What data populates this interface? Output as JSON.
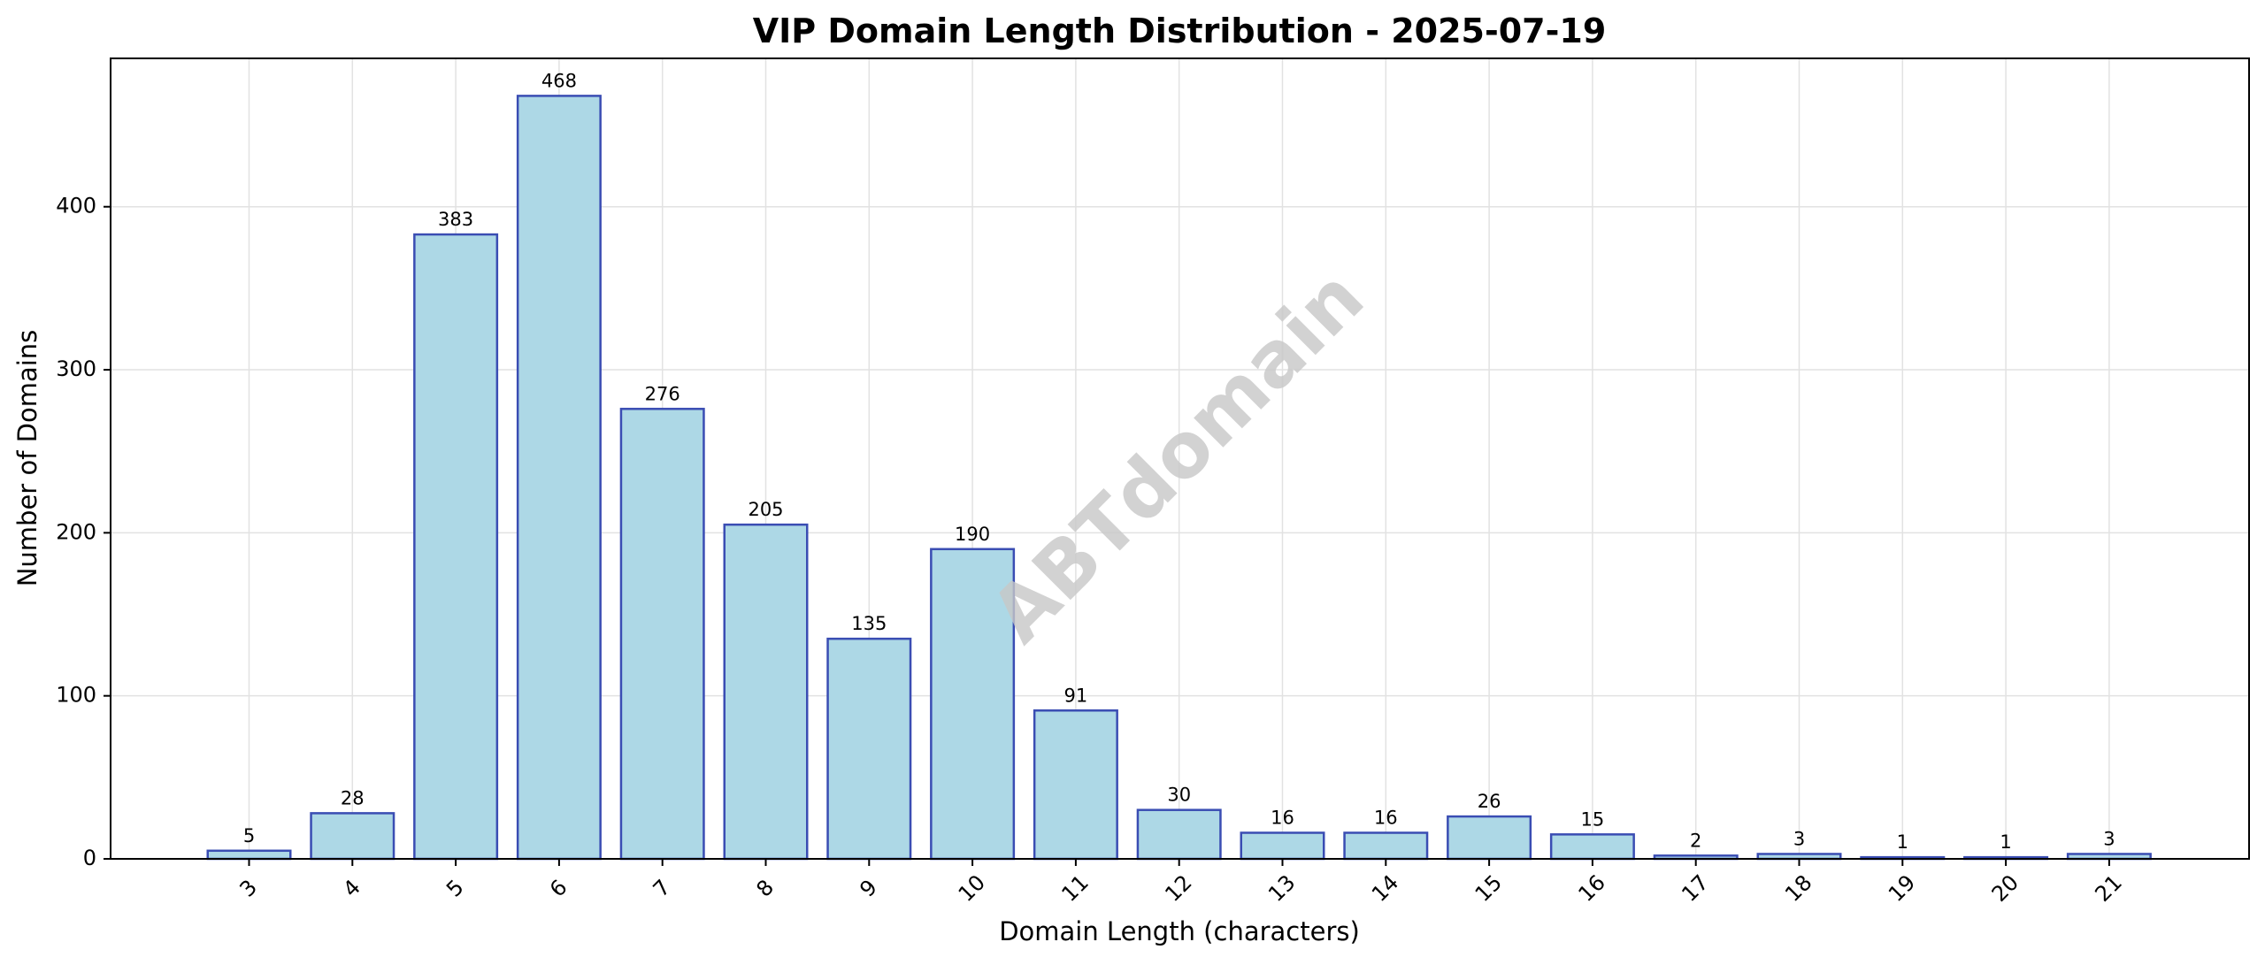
{
  "chart_data": {
    "type": "bar",
    "title": "VIP Domain Length Distribution - 2025-07-19",
    "xlabel": "Domain Length (characters)",
    "ylabel": "Number of Domains",
    "categories": [
      "3",
      "4",
      "5",
      "6",
      "7",
      "8",
      "9",
      "10",
      "11",
      "12",
      "13",
      "14",
      "15",
      "16",
      "17",
      "18",
      "19",
      "20",
      "21"
    ],
    "values": [
      5,
      28,
      383,
      468,
      276,
      205,
      135,
      190,
      91,
      30,
      16,
      16,
      26,
      15,
      2,
      3,
      1,
      1,
      3
    ],
    "yticks": [
      0,
      100,
      200,
      300,
      400
    ],
    "ylim": [
      0,
      491
    ],
    "grid": true,
    "legend": "none",
    "x_tick_rotation": "45°",
    "watermark": "ABTdomain",
    "colors": {
      "bar_fill": "#add8e6",
      "bar_edge": "#3a4db3",
      "grid": "#e2e2e2",
      "axis": "#000000"
    }
  }
}
